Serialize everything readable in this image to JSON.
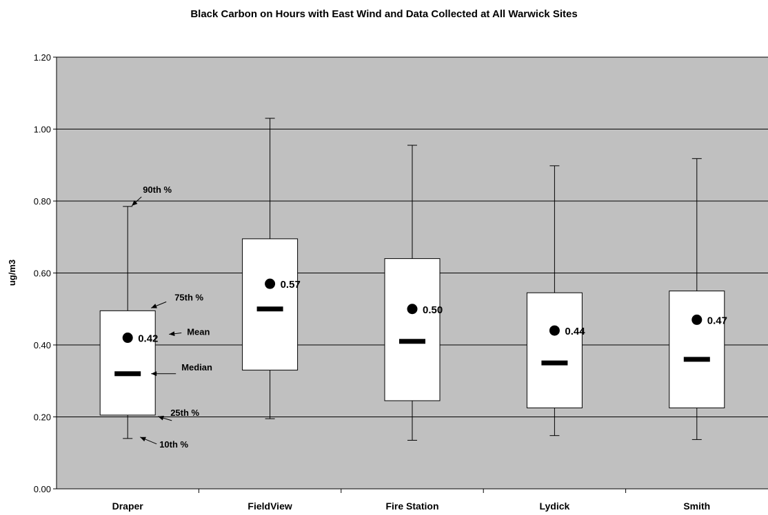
{
  "chart_data": {
    "type": "boxplot",
    "title": "Black Carbon on Hours with East Wind and Data Collected at All Warwick Sites",
    "xlabel": "",
    "ylabel": "ug/m3",
    "ylim": [
      0,
      1.2
    ],
    "yticks": [
      "0.00",
      "0.20",
      "0.40",
      "0.60",
      "0.80",
      "1.00",
      "1.20"
    ],
    "grid": true,
    "categories": [
      "Draper",
      "FieldView",
      "Fire Station",
      "Lydick",
      "Smith"
    ],
    "series": [
      {
        "category": "Draper",
        "p10": 0.14,
        "p25": 0.205,
        "median": 0.32,
        "mean": 0.42,
        "p75": 0.495,
        "p90": 0.785,
        "mean_label": "0.42"
      },
      {
        "category": "FieldView",
        "p10": 0.195,
        "p25": 0.33,
        "median": 0.5,
        "mean": 0.57,
        "p75": 0.695,
        "p90": 1.03,
        "mean_label": "0.57"
      },
      {
        "category": "Fire Station",
        "p10": 0.135,
        "p25": 0.245,
        "median": 0.41,
        "mean": 0.5,
        "p75": 0.64,
        "p90": 0.955,
        "mean_label": "0.50"
      },
      {
        "category": "Lydick",
        "p10": 0.148,
        "p25": 0.225,
        "median": 0.35,
        "mean": 0.44,
        "p75": 0.545,
        "p90": 0.898,
        "mean_label": "0.44"
      },
      {
        "category": "Smith",
        "p10": 0.137,
        "p25": 0.225,
        "median": 0.36,
        "mean": 0.47,
        "p75": 0.55,
        "p90": 0.918,
        "mean_label": "0.47"
      }
    ],
    "annotations": {
      "p90": "90th %",
      "p75": "75th %",
      "mean": "Mean",
      "median": "Median",
      "p25": "25th %",
      "p10": "10th %"
    },
    "colors": {
      "plot_background": "#c0c0c0",
      "box_fill": "#ffffff",
      "line": "#000000"
    }
  }
}
